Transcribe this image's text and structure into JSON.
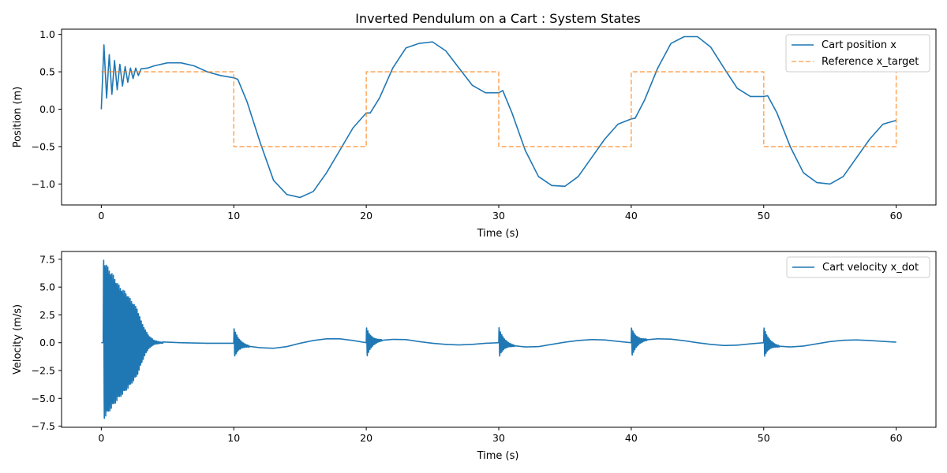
{
  "figure": {
    "title": "Inverted Pendulum on a Cart : System States"
  },
  "colors": {
    "position_line": "#1f77b4",
    "reference_line": "#ff7f0e",
    "velocity_line": "#1f77b4",
    "axes_frame": "#000000",
    "legend_border": "#cccccc"
  },
  "chart_data": [
    {
      "type": "line",
      "title": "Inverted Pendulum on a Cart : System States",
      "xlabel": "Time (s)",
      "ylabel": "Position (m)",
      "xlim": [
        -3,
        63
      ],
      "ylim": [
        -1.28,
        1.07
      ],
      "xticks": [
        0,
        10,
        20,
        30,
        40,
        50,
        60
      ],
      "xtick_labels": [
        "0",
        "10",
        "20",
        "30",
        "40",
        "50",
        "60"
      ],
      "yticks": [
        1.0,
        0.5,
        0.0,
        -0.5,
        -1.0
      ],
      "ytick_labels": [
        "1.0",
        "0.5",
        "0.0",
        "−0.5",
        "−1.0"
      ],
      "grid": false,
      "legend_position": "top-right",
      "series": [
        {
          "name": "Cart position x",
          "style": "solid",
          "x": [
            0,
            0.2,
            0.4,
            0.6,
            0.8,
            1.0,
            1.2,
            1.4,
            1.6,
            1.8,
            2.0,
            2.2,
            2.4,
            2.6,
            2.8,
            3.0,
            3.5,
            4,
            5,
            6,
            7,
            8,
            9,
            10,
            10.3,
            11,
            12,
            13,
            14,
            15,
            16,
            17,
            18,
            19,
            20,
            20.3,
            21,
            22,
            23,
            24,
            25,
            26,
            27,
            28,
            29,
            30,
            30.3,
            31,
            32,
            33,
            34,
            35,
            36,
            37,
            38,
            39,
            40,
            40.3,
            41,
            42,
            43,
            44,
            45,
            46,
            47,
            48,
            49,
            50,
            50.3,
            51,
            52,
            53,
            54,
            55,
            56,
            57,
            58,
            59,
            60
          ],
          "y": [
            0.0,
            0.86,
            0.15,
            0.73,
            0.2,
            0.65,
            0.26,
            0.6,
            0.31,
            0.57,
            0.36,
            0.55,
            0.41,
            0.55,
            0.45,
            0.54,
            0.55,
            0.58,
            0.62,
            0.62,
            0.58,
            0.5,
            0.45,
            0.42,
            0.4,
            0.1,
            -0.45,
            -0.95,
            -1.14,
            -1.18,
            -1.1,
            -0.85,
            -0.55,
            -0.25,
            -0.05,
            -0.05,
            0.15,
            0.55,
            0.82,
            0.88,
            0.9,
            0.78,
            0.55,
            0.32,
            0.22,
            0.22,
            0.25,
            -0.05,
            -0.55,
            -0.9,
            -1.02,
            -1.03,
            -0.9,
            -0.65,
            -0.4,
            -0.2,
            -0.13,
            -0.12,
            0.12,
            0.55,
            0.88,
            0.97,
            0.97,
            0.83,
            0.55,
            0.28,
            0.17,
            0.17,
            0.18,
            -0.05,
            -0.5,
            -0.85,
            -0.98,
            -1.0,
            -0.9,
            -0.65,
            -0.4,
            -0.2,
            -0.15
          ]
        },
        {
          "name": "Reference x_target",
          "style": "dashed",
          "x": [
            0,
            10,
            10,
            20,
            20,
            30,
            30,
            40,
            40,
            50,
            50,
            60,
            60
          ],
          "y": [
            0.5,
            0.5,
            -0.5,
            -0.5,
            0.5,
            0.5,
            -0.5,
            -0.5,
            0.5,
            0.5,
            -0.5,
            -0.5,
            0.5
          ]
        }
      ]
    },
    {
      "type": "line",
      "xlabel": "Time (s)",
      "ylabel": "Velocity (m/s)",
      "xlim": [
        -3,
        63
      ],
      "ylim": [
        -7.6,
        8.2
      ],
      "xticks": [
        0,
        10,
        20,
        30,
        40,
        50,
        60
      ],
      "xtick_labels": [
        "0",
        "10",
        "20",
        "30",
        "40",
        "50",
        "60"
      ],
      "yticks": [
        7.5,
        5.0,
        2.5,
        0.0,
        -2.5,
        -5.0,
        -7.5
      ],
      "ytick_labels": [
        "7.5",
        "5.0",
        "2.5",
        "0.0",
        "−2.5",
        "−5.0",
        "−7.5"
      ],
      "grid": false,
      "legend_position": "top-right",
      "series": [
        {
          "name": "Cart velocity x_dot",
          "style": "solid",
          "base_x": [
            0,
            2,
            4,
            6,
            8,
            10,
            11,
            12,
            13,
            14,
            15,
            16,
            17,
            18,
            19,
            20,
            21,
            22,
            23,
            24,
            25,
            26,
            27,
            28,
            29,
            30,
            31,
            32,
            33,
            34,
            35,
            36,
            37,
            38,
            39,
            40,
            41,
            42,
            43,
            44,
            45,
            46,
            47,
            48,
            49,
            50,
            51,
            52,
            53,
            54,
            55,
            56,
            57,
            58,
            59,
            60
          ],
          "base_y": [
            0.0,
            0.2,
            0.1,
            0.0,
            -0.05,
            -0.05,
            -0.3,
            -0.45,
            -0.5,
            -0.35,
            -0.05,
            0.2,
            0.35,
            0.35,
            0.2,
            0.0,
            0.2,
            0.3,
            0.28,
            0.1,
            -0.05,
            -0.15,
            -0.2,
            -0.15,
            -0.05,
            0.0,
            -0.25,
            -0.38,
            -0.35,
            -0.15,
            0.05,
            0.2,
            0.28,
            0.25,
            0.12,
            0.0,
            0.25,
            0.35,
            0.32,
            0.18,
            0.0,
            -0.15,
            -0.25,
            -0.22,
            -0.1,
            0.0,
            -0.3,
            -0.38,
            -0.3,
            -0.1,
            0.1,
            0.22,
            0.25,
            0.2,
            0.12,
            0.05
          ],
          "initial_oscillation": {
            "start": 0.15,
            "duration": 4.5,
            "period": 0.105,
            "extrema_x": [
              0.15,
              0.3,
              0.6,
              0.9,
              1.2,
              1.5,
              1.8,
              2.1,
              2.4,
              2.7,
              3.0,
              3.3,
              3.6,
              4.0,
              4.5
            ],
            "upper_envelope": [
              7.7,
              7.2,
              6.6,
              6.1,
              5.4,
              4.9,
              4.6,
              4.1,
              3.6,
              3.1,
              2.0,
              1.2,
              0.6,
              0.2,
              0.05
            ],
            "lower_envelope": [
              -6.9,
              -6.7,
              -6.2,
              -5.7,
              -5.2,
              -4.8,
              -4.4,
              -4.0,
              -3.5,
              -3.0,
              -2.0,
              -1.1,
              -0.5,
              -0.15,
              -0.05
            ]
          },
          "step_bursts": [
            {
              "t": 10,
              "upper": 1.45,
              "lower": -1.45,
              "duration": 1.2
            },
            {
              "t": 20,
              "upper": 1.45,
              "lower": -1.45,
              "duration": 1.2
            },
            {
              "t": 30,
              "upper": 1.45,
              "lower": -1.45,
              "duration": 1.2
            },
            {
              "t": 40,
              "upper": 1.45,
              "lower": -1.45,
              "duration": 1.2
            },
            {
              "t": 50,
              "upper": 1.45,
              "lower": -1.45,
              "duration": 1.2
            }
          ]
        }
      ]
    }
  ]
}
